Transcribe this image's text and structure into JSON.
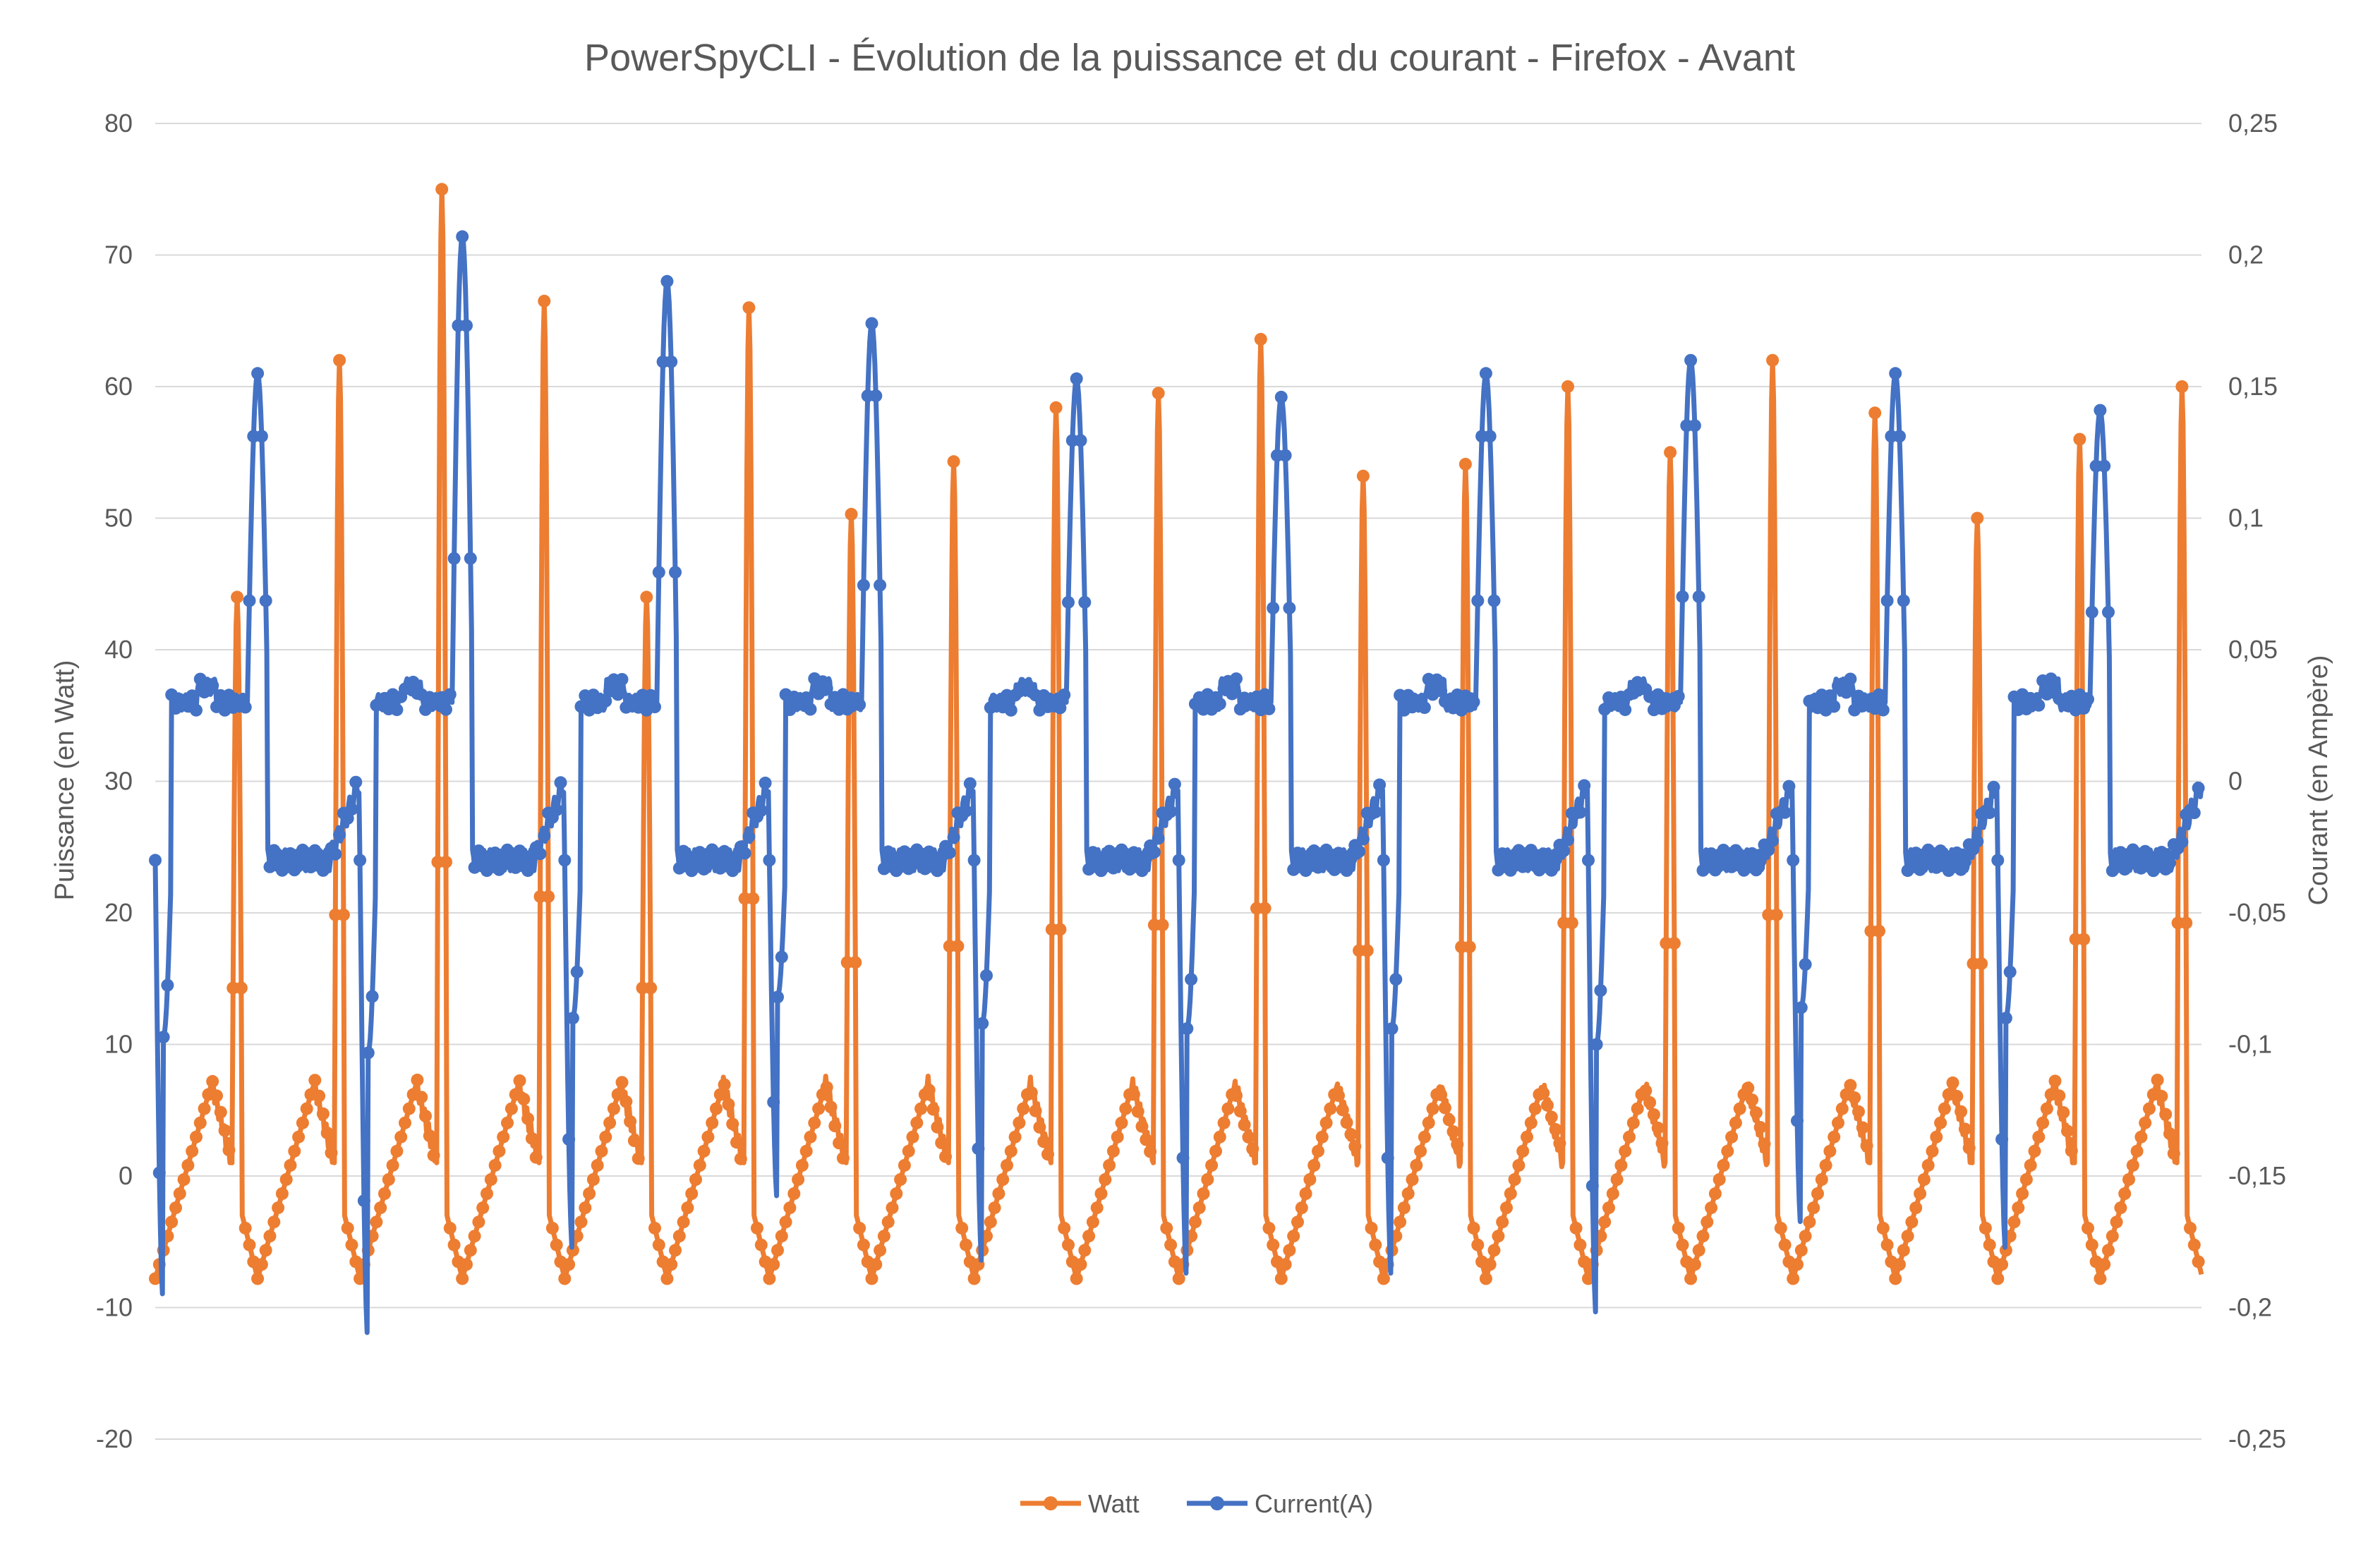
{
  "chart_data": {
    "type": "line",
    "title": "PowerSpyCLI - Évolution de la puissance et du courant - Firefox - Avant",
    "ylabel": "Puissance (en Watt)",
    "y2label": "Courant (en Ampère)",
    "xlabel": "",
    "ylim": [
      -20,
      80
    ],
    "y2lim": [
      -0.25,
      0.25
    ],
    "y_ticks": [
      "80",
      "70",
      "60",
      "50",
      "40",
      "30",
      "20",
      "10",
      "0",
      "-10",
      "-20"
    ],
    "y2_ticks": [
      "0,25",
      "0,2",
      "0,15",
      "0,1",
      "0,05",
      "0",
      "-0,05",
      "-0,1",
      "-0,15",
      "-0,2",
      "-0,25"
    ],
    "grid": true,
    "legend_position": "bottom",
    "x_count": 2000,
    "series": [
      {
        "name": "Watt",
        "axis": "left",
        "color": "#ED7D31",
        "cycles": 20,
        "baseline_min": -7.8,
        "baseline_max": 7,
        "peaks": [
          44,
          62,
          75,
          66.5,
          44,
          66,
          50.3,
          54.3,
          58.4,
          59.5,
          63.6,
          53.2,
          54.1,
          60,
          55,
          62,
          58,
          50,
          56,
          60
        ]
      },
      {
        "name": "Current(A)",
        "axis": "right",
        "color": "#4472C4",
        "cycles": 10,
        "plateau_high": 0.03,
        "plateau_low": -0.03,
        "peaks_high": [
          0.155,
          0.207,
          0.19,
          0.174,
          0.153,
          0.146,
          0.155,
          0.16,
          0.155,
          0.141
        ],
        "peaks_low": [
          -0.198,
          -0.213,
          -0.18,
          -0.16,
          -0.185,
          -0.19,
          -0.19,
          -0.205,
          -0.17,
          -0.18
        ]
      }
    ]
  }
}
